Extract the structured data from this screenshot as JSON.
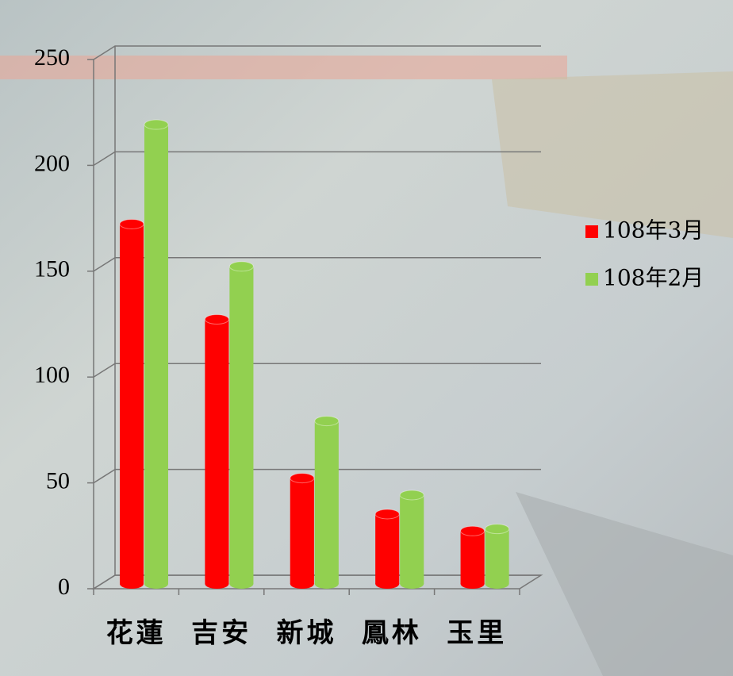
{
  "chart_data": {
    "type": "bar",
    "categories": [
      "花蓮",
      "吉安",
      "新城",
      "鳳林",
      "玉里"
    ],
    "series": [
      {
        "name": "108年3月",
        "color": "#ff0000",
        "values": [
          170,
          125,
          50,
          33,
          25
        ]
      },
      {
        "name": "108年2月",
        "color": "#92d050",
        "values": [
          217,
          150,
          77,
          42,
          26
        ]
      }
    ],
    "ylim": [
      0,
      250
    ],
    "yticks": [
      0,
      50,
      100,
      150,
      200,
      250
    ],
    "grid": true,
    "legend": "right"
  }
}
